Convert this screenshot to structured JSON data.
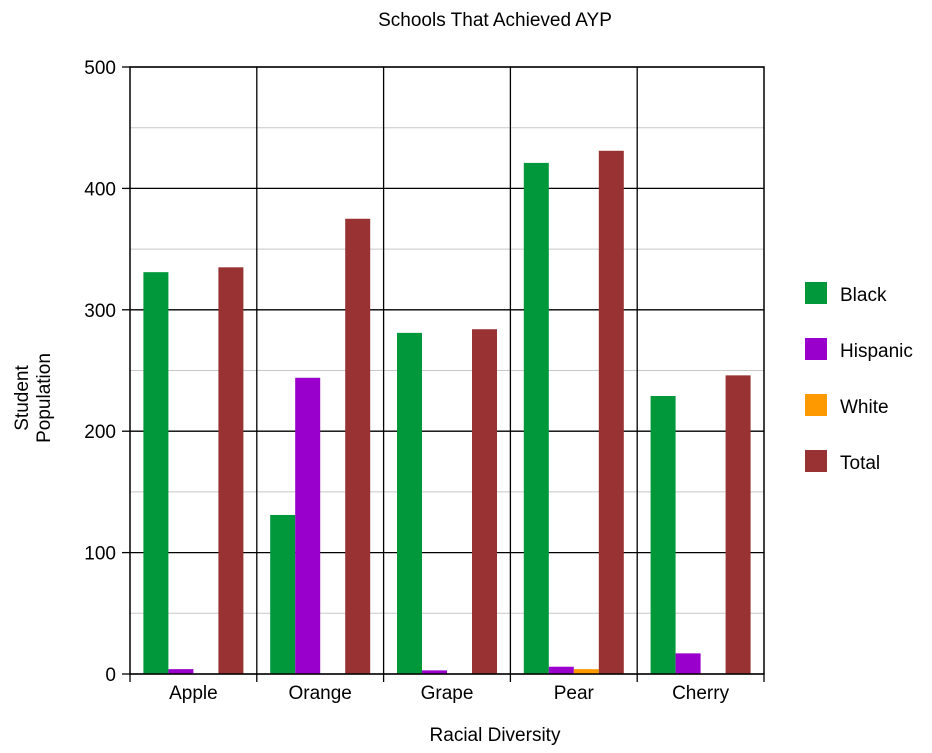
{
  "chart_data": {
    "type": "bar",
    "title": "Schools That Achieved AYP",
    "xlabel": "Racial Diversity",
    "ylabel": "Student Population",
    "ylabel_lines": [
      "Student",
      "Population"
    ],
    "ylim": [
      0,
      500
    ],
    "yticks": [
      0,
      100,
      200,
      300,
      400,
      500
    ],
    "grid": true,
    "legend_position": "right",
    "categories": [
      "Apple",
      "Orange",
      "Grape",
      "Pear",
      "Cherry"
    ],
    "series": [
      {
        "name": "Black",
        "color": "#00983a",
        "values": [
          331,
          131,
          281,
          421,
          229
        ]
      },
      {
        "name": "Hispanic",
        "color": "#9900cc",
        "values": [
          4,
          244,
          3,
          6,
          17
        ]
      },
      {
        "name": "White",
        "color": "#ff9900",
        "values": [
          0,
          0,
          0,
          4,
          0
        ]
      },
      {
        "name": "Total",
        "color": "#993333",
        "values": [
          335,
          375,
          284,
          431,
          246
        ]
      }
    ]
  }
}
